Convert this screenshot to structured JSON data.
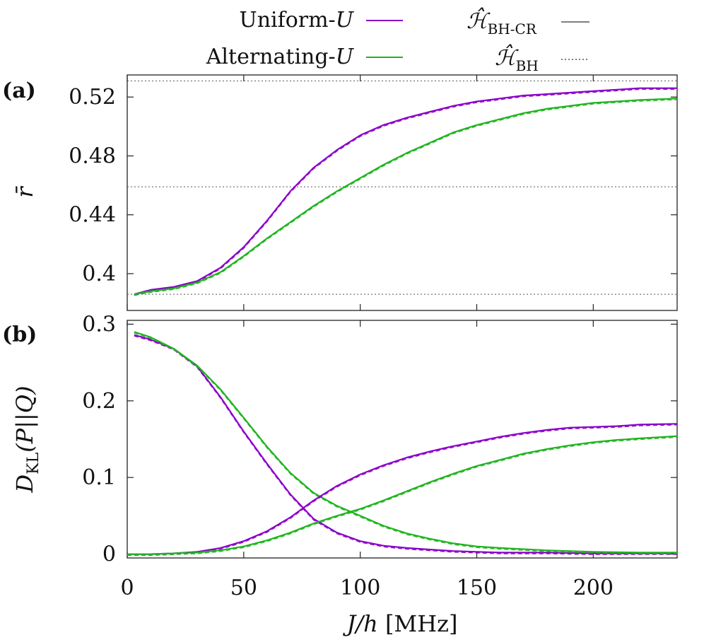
{
  "chart_data": [
    {
      "panel": "(a)",
      "type": "line",
      "ylabel": "r̄",
      "xlim": [
        0,
        236
      ],
      "ylim": [
        0.375,
        0.535
      ],
      "xticks": [
        0,
        50,
        100,
        150,
        200
      ],
      "yticks": [
        0.4,
        0.44,
        0.48,
        0.52
      ],
      "ytick_labels": [
        "0.4",
        "0.44",
        "0.48",
        "0.52"
      ],
      "reference_lines": [
        0.531,
        0.459,
        0.386
      ],
      "series": [
        {
          "name": "Uniform-U",
          "color": "#8b00c9",
          "x": [
            3,
            10,
            20,
            30,
            40,
            50,
            60,
            70,
            80,
            90,
            100,
            110,
            120,
            130,
            140,
            150,
            160,
            170,
            180,
            190,
            200,
            210,
            220,
            236
          ],
          "y": [
            0.386,
            0.389,
            0.391,
            0.395,
            0.404,
            0.418,
            0.436,
            0.456,
            0.472,
            0.484,
            0.494,
            0.501,
            0.506,
            0.51,
            0.514,
            0.517,
            0.519,
            0.521,
            0.522,
            0.523,
            0.524,
            0.525,
            0.526,
            0.526
          ]
        },
        {
          "name": "Alternating-U",
          "color": "#1fb41f",
          "x": [
            3,
            10,
            20,
            30,
            40,
            50,
            60,
            70,
            80,
            90,
            100,
            110,
            120,
            130,
            140,
            150,
            160,
            170,
            180,
            190,
            200,
            210,
            220,
            236
          ],
          "y": [
            0.386,
            0.388,
            0.39,
            0.394,
            0.401,
            0.412,
            0.424,
            0.435,
            0.446,
            0.456,
            0.465,
            0.474,
            0.482,
            0.489,
            0.496,
            0.501,
            0.505,
            0.509,
            0.512,
            0.514,
            0.516,
            0.517,
            0.518,
            0.519
          ]
        }
      ]
    },
    {
      "panel": "(b)",
      "type": "line",
      "ylabel": "D_KL(P||Q)",
      "xlabel": "J/h [MHz]",
      "xlim": [
        0,
        236
      ],
      "ylim": [
        -0.005,
        0.305
      ],
      "xticks": [
        0,
        50,
        100,
        150,
        200
      ],
      "yticks": [
        0,
        0.1,
        0.2,
        0.3
      ],
      "ytick_labels": [
        "0",
        "0.1",
        "0.2",
        "0.3"
      ],
      "series": [
        {
          "name": "Uniform-U decreasing",
          "color": "#8b00c9",
          "x": [
            3,
            10,
            20,
            30,
            40,
            50,
            60,
            70,
            80,
            90,
            100,
            110,
            120,
            130,
            140,
            150,
            160,
            180,
            200,
            220,
            236
          ],
          "y": [
            0.286,
            0.28,
            0.268,
            0.245,
            0.205,
            0.16,
            0.118,
            0.078,
            0.046,
            0.028,
            0.017,
            0.011,
            0.008,
            0.006,
            0.004,
            0.003,
            0.002,
            0.002,
            0.001,
            0.001,
            0.001
          ]
        },
        {
          "name": "Alternating-U decreasing",
          "color": "#1fb41f",
          "x": [
            3,
            10,
            20,
            30,
            40,
            50,
            60,
            70,
            80,
            90,
            100,
            110,
            120,
            130,
            140,
            150,
            160,
            180,
            200,
            220,
            236
          ],
          "y": [
            0.29,
            0.283,
            0.268,
            0.246,
            0.215,
            0.178,
            0.14,
            0.106,
            0.08,
            0.063,
            0.05,
            0.037,
            0.027,
            0.02,
            0.014,
            0.01,
            0.008,
            0.005,
            0.003,
            0.002,
            0.002
          ]
        },
        {
          "name": "Uniform-U increasing",
          "color": "#8b00c9",
          "x": [
            0,
            10,
            20,
            30,
            40,
            50,
            60,
            70,
            80,
            90,
            100,
            110,
            120,
            130,
            140,
            150,
            160,
            170,
            180,
            190,
            200,
            210,
            220,
            236
          ],
          "y": [
            0.0,
            0.0,
            0.001,
            0.003,
            0.008,
            0.017,
            0.03,
            0.048,
            0.07,
            0.089,
            0.104,
            0.116,
            0.126,
            0.134,
            0.141,
            0.147,
            0.153,
            0.158,
            0.162,
            0.165,
            0.166,
            0.167,
            0.169,
            0.17
          ]
        },
        {
          "name": "Alternating-U increasing",
          "color": "#1fb41f",
          "x": [
            0,
            10,
            20,
            30,
            40,
            50,
            60,
            70,
            80,
            90,
            100,
            110,
            120,
            130,
            140,
            150,
            160,
            170,
            180,
            190,
            200,
            210,
            220,
            236
          ],
          "y": [
            0.0,
            0.0,
            0.001,
            0.002,
            0.005,
            0.01,
            0.018,
            0.028,
            0.04,
            0.05,
            0.059,
            0.07,
            0.082,
            0.094,
            0.105,
            0.115,
            0.123,
            0.131,
            0.137,
            0.142,
            0.146,
            0.149,
            0.151,
            0.154
          ]
        }
      ]
    }
  ],
  "legend": {
    "items": [
      {
        "label": "Uniform-",
        "var": "U",
        "color": "#8b00c9",
        "style": "solid"
      },
      {
        "label": "Alternating-",
        "var": "U",
        "color": "#1fb41f",
        "style": "solid"
      },
      {
        "label": "ℋ̂",
        "sub": "BH-CR",
        "color": "#333333",
        "style": "solid"
      },
      {
        "label": "ℋ̂",
        "sub": "BH",
        "color": "#333333",
        "style": "dotted"
      }
    ]
  },
  "xaxis": {
    "var": "J/h",
    "unit": "[MHz]"
  },
  "yaxis_b": {
    "base": "D",
    "sub": "KL",
    "arg": "(P||Q)"
  },
  "yaxis_a": {
    "symbol": "r̄"
  }
}
